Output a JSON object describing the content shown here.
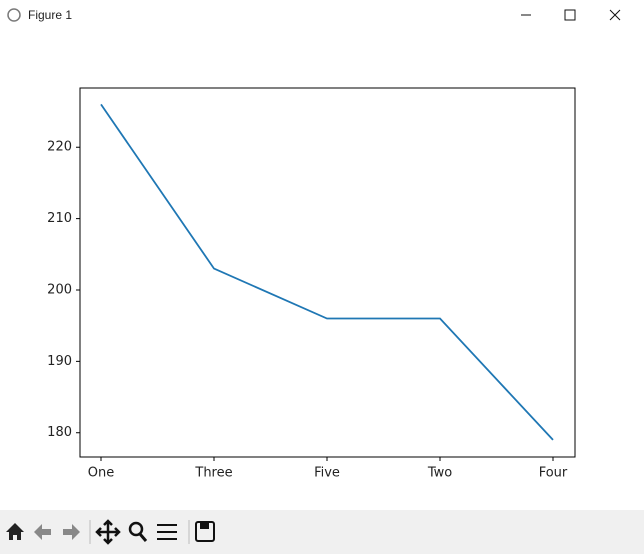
{
  "window": {
    "title": "Figure 1"
  },
  "chart_data": {
    "type": "line",
    "categories": [
      "One",
      "Three",
      "Five",
      "Two",
      "Four"
    ],
    "values": [
      226,
      203,
      196,
      196,
      179
    ],
    "color": "#1f77b4",
    "ylim": [
      176.6,
      228.3
    ],
    "yticks": [
      180,
      190,
      200,
      210,
      220
    ],
    "grid": false
  }
}
